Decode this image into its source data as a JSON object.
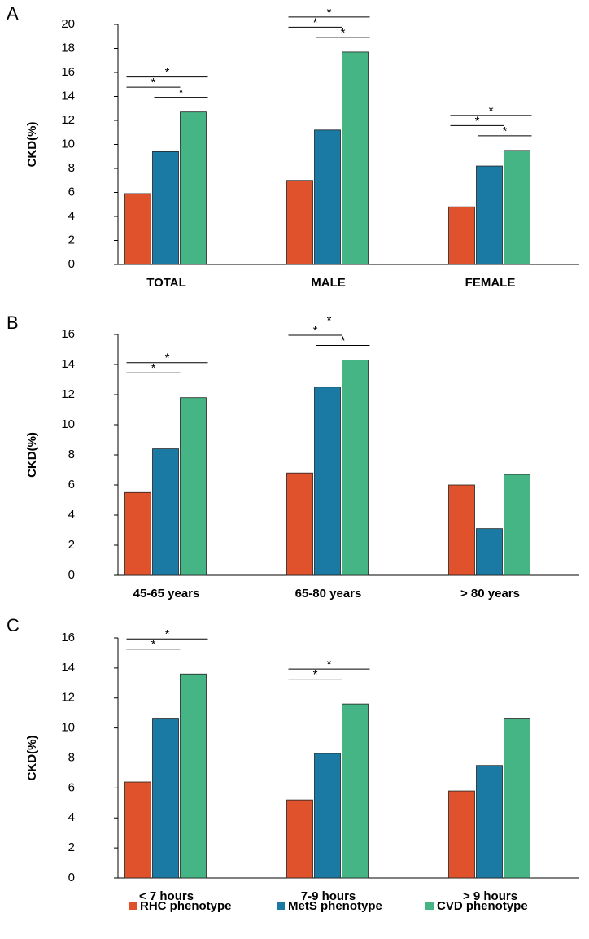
{
  "legend": [
    {
      "name": "RHC phenotype",
      "color": "#e0522b"
    },
    {
      "name": "MetS phenotype",
      "color": "#1a7aa3"
    },
    {
      "name": "CVD phenotype",
      "color": "#45b585"
    }
  ],
  "chart_data": [
    {
      "type": "bar",
      "panel_label": "A",
      "y_label": "CKD(%)",
      "categories": [
        "TOTAL",
        "MALE",
        "FEMALE"
      ],
      "series": [
        {
          "values": [
            5.9,
            7.0,
            4.8
          ]
        },
        {
          "values": [
            9.4,
            11.2,
            8.2
          ]
        },
        {
          "values": [
            12.7,
            17.7,
            9.5
          ]
        }
      ],
      "ylim": [
        0,
        20
      ],
      "yticks": [
        0,
        2,
        4,
        6,
        8,
        10,
        12,
        14,
        16,
        18,
        20
      ],
      "annotations": [
        {
          "category": 0,
          "between": [
            0,
            2
          ],
          "label": "*"
        },
        {
          "category": 0,
          "between": [
            0,
            1
          ],
          "label": "*"
        },
        {
          "category": 0,
          "between": [
            1,
            2
          ],
          "label": "*"
        },
        {
          "category": 1,
          "between": [
            0,
            2
          ],
          "label": "*"
        },
        {
          "category": 1,
          "between": [
            0,
            1
          ],
          "label": "*"
        },
        {
          "category": 1,
          "between": [
            1,
            2
          ],
          "label": "*"
        },
        {
          "category": 2,
          "between": [
            0,
            2
          ],
          "label": "*"
        },
        {
          "category": 2,
          "between": [
            0,
            1
          ],
          "label": "*"
        },
        {
          "category": 2,
          "between": [
            1,
            2
          ],
          "label": "*"
        }
      ]
    },
    {
      "type": "bar",
      "panel_label": "B",
      "y_label": "CKD(%)",
      "categories": [
        "45-65 years",
        "65-80 years",
        "> 80 years"
      ],
      "series": [
        {
          "values": [
            5.5,
            6.8,
            6.0
          ]
        },
        {
          "values": [
            8.4,
            12.5,
            3.1
          ]
        },
        {
          "values": [
            11.8,
            14.3,
            6.7
          ]
        }
      ],
      "ylim": [
        0,
        16
      ],
      "yticks": [
        0,
        2,
        4,
        6,
        8,
        10,
        12,
        14,
        16
      ],
      "annotations": [
        {
          "category": 0,
          "between": [
            0,
            2
          ],
          "label": "*"
        },
        {
          "category": 0,
          "between": [
            0,
            1
          ],
          "label": "*"
        },
        {
          "category": 1,
          "between": [
            0,
            2
          ],
          "label": "*"
        },
        {
          "category": 1,
          "between": [
            0,
            1
          ],
          "label": "*"
        },
        {
          "category": 1,
          "between": [
            1,
            2
          ],
          "label": "*"
        }
      ]
    },
    {
      "type": "bar",
      "panel_label": "C",
      "y_label": "CKD(%)",
      "categories": [
        "< 7 hours",
        "7-9 hours",
        "> 9 hours"
      ],
      "series": [
        {
          "values": [
            6.4,
            5.2,
            5.8
          ]
        },
        {
          "values": [
            10.6,
            8.3,
            7.5
          ]
        },
        {
          "values": [
            13.6,
            11.6,
            10.6
          ]
        }
      ],
      "ylim": [
        0,
        16
      ],
      "yticks": [
        0,
        2,
        4,
        6,
        8,
        10,
        12,
        14,
        16
      ],
      "annotations": [
        {
          "category": 0,
          "between": [
            0,
            2
          ],
          "label": "*"
        },
        {
          "category": 0,
          "between": [
            0,
            1
          ],
          "label": "*"
        },
        {
          "category": 1,
          "between": [
            0,
            2
          ],
          "label": "*"
        },
        {
          "category": 1,
          "between": [
            0,
            1
          ],
          "label": "*"
        }
      ]
    }
  ]
}
